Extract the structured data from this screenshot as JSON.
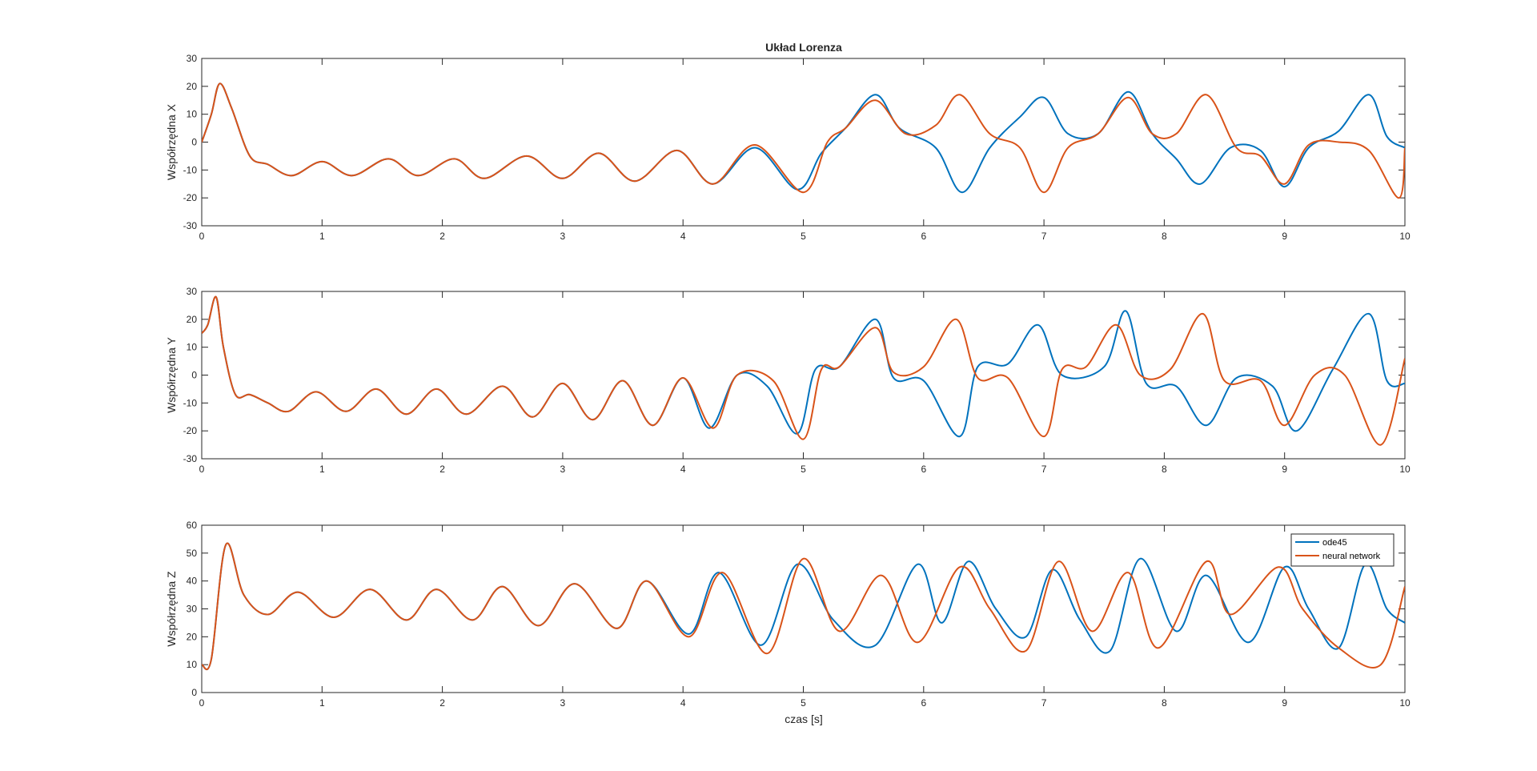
{
  "figure": {
    "title": "Układ Lorenza",
    "xlabel": "czas [s]"
  },
  "legend": {
    "placement": "top-right of bottom plot",
    "entries": [
      "ode45",
      "neural network"
    ]
  },
  "colors": {
    "ode45": "#0072BD",
    "neural_network": "#D95319",
    "axes": "#262626",
    "grid_ticks": "#262626"
  },
  "chart_data": [
    {
      "type": "line",
      "title": "Układ Lorenza",
      "ylabel": "Współrzędna X",
      "xlabel": "",
      "xlim": [
        0,
        10
      ],
      "ylim": [
        -30,
        30
      ],
      "xticks": [
        0,
        1,
        2,
        3,
        4,
        5,
        6,
        7,
        8,
        9,
        10
      ],
      "yticks": [
        30,
        20,
        10,
        0,
        -10,
        -20,
        -30
      ],
      "grid": false,
      "series": [
        {
          "name": "ode45",
          "color": "#0072BD",
          "x": [
            0,
            0.08,
            0.15,
            0.25,
            0.4,
            0.55,
            0.75,
            1,
            1.25,
            1.55,
            1.8,
            2.1,
            2.35,
            2.7,
            3.0,
            3.3,
            3.6,
            3.95,
            4.25,
            4.6,
            4.95,
            5.15,
            5.35,
            5.6,
            5.8,
            6.1,
            6.32,
            6.55,
            6.8,
            7.0,
            7.2,
            7.45,
            7.7,
            7.9,
            8.1,
            8.3,
            8.55,
            8.8,
            9.0,
            9.2,
            9.45,
            9.7,
            9.85,
            10
          ],
          "y": [
            0,
            10,
            21,
            12,
            -5,
            -8,
            -12,
            -7,
            -12,
            -6,
            -12,
            -6,
            -13,
            -5,
            -13,
            -4,
            -14,
            -3,
            -15,
            -2,
            -17,
            -4,
            5,
            17,
            5,
            -2,
            -18,
            -2,
            9,
            16,
            3,
            3,
            18,
            3,
            -6,
            -15,
            -2,
            -3,
            -16,
            -2,
            4,
            17,
            2,
            -2
          ]
        },
        {
          "name": "neural network",
          "color": "#D95319",
          "x": [
            0,
            0.08,
            0.15,
            0.25,
            0.4,
            0.55,
            0.75,
            1,
            1.25,
            1.55,
            1.8,
            2.1,
            2.35,
            2.7,
            3.0,
            3.3,
            3.6,
            3.95,
            4.25,
            4.6,
            5.0,
            5.2,
            5.35,
            5.6,
            5.85,
            6.1,
            6.3,
            6.55,
            6.8,
            7.0,
            7.2,
            7.45,
            7.7,
            7.9,
            8.1,
            8.35,
            8.6,
            8.8,
            9.0,
            9.2,
            9.45,
            9.7,
            9.95,
            10
          ],
          "y": [
            0,
            10,
            21,
            12,
            -5,
            -8,
            -12,
            -7,
            -12,
            -6,
            -12,
            -6,
            -13,
            -5,
            -13,
            -4,
            -14,
            -3,
            -15,
            -1,
            -18,
            0,
            5,
            15,
            3,
            6,
            17,
            3,
            -2,
            -18,
            -2,
            3,
            16,
            3,
            3,
            17,
            -2,
            -5,
            -15,
            -1,
            0,
            -3,
            -20,
            -2
          ]
        }
      ]
    },
    {
      "type": "line",
      "title": "",
      "ylabel": "Współrzędna Y",
      "xlabel": "",
      "xlim": [
        0,
        10
      ],
      "ylim": [
        -30,
        30
      ],
      "xticks": [
        0,
        1,
        2,
        3,
        4,
        5,
        6,
        7,
        8,
        9,
        10
      ],
      "yticks": [
        30,
        20,
        10,
        0,
        -10,
        -20,
        -30
      ],
      "grid": false,
      "series": [
        {
          "name": "ode45",
          "color": "#0072BD",
          "x": [
            0,
            0.05,
            0.12,
            0.18,
            0.28,
            0.4,
            0.55,
            0.72,
            0.95,
            1.2,
            1.45,
            1.7,
            1.95,
            2.2,
            2.5,
            2.75,
            3.0,
            3.25,
            3.5,
            3.75,
            4.0,
            4.22,
            4.45,
            4.7,
            4.95,
            5.1,
            5.3,
            5.6,
            5.75,
            6.0,
            6.3,
            6.45,
            6.7,
            6.95,
            7.15,
            7.5,
            7.68,
            7.85,
            8.1,
            8.35,
            8.6,
            8.9,
            9.1,
            9.4,
            9.7,
            9.85,
            10
          ],
          "y": [
            15,
            18,
            28,
            10,
            -7,
            -7,
            -10,
            -13,
            -6,
            -13,
            -5,
            -14,
            -5,
            -14,
            -4,
            -15,
            -3,
            -16,
            -2,
            -18,
            -1,
            -19,
            0,
            -4,
            -21,
            2,
            3,
            20,
            -1,
            -2,
            -22,
            3,
            4,
            18,
            0,
            3,
            23,
            -3,
            -4,
            -18,
            -1,
            -4,
            -20,
            2,
            22,
            -2,
            -3
          ]
        },
        {
          "name": "neural network",
          "color": "#D95319",
          "x": [
            0,
            0.05,
            0.12,
            0.18,
            0.28,
            0.4,
            0.55,
            0.72,
            0.95,
            1.2,
            1.45,
            1.7,
            1.95,
            2.2,
            2.5,
            2.75,
            3.0,
            3.25,
            3.5,
            3.75,
            4.0,
            4.25,
            4.45,
            4.75,
            5.0,
            5.15,
            5.3,
            5.6,
            5.75,
            6.0,
            6.27,
            6.45,
            6.7,
            7.0,
            7.15,
            7.35,
            7.6,
            7.8,
            8.05,
            8.32,
            8.5,
            8.8,
            9.0,
            9.25,
            9.5,
            9.8,
            10
          ],
          "y": [
            15,
            18,
            28,
            10,
            -7,
            -7,
            -10,
            -13,
            -6,
            -13,
            -5,
            -14,
            -5,
            -14,
            -4,
            -15,
            -3,
            -16,
            -2,
            -18,
            -1,
            -19,
            0,
            -2,
            -23,
            2,
            3,
            17,
            1,
            3,
            20,
            -1,
            -1,
            -22,
            2,
            3,
            18,
            0,
            2,
            22,
            -2,
            -2,
            -18,
            0,
            0,
            -25,
            6
          ]
        }
      ]
    },
    {
      "type": "line",
      "title": "",
      "ylabel": "Współrzędna Z",
      "xlabel": "czas [s]",
      "xlim": [
        0,
        10
      ],
      "ylim": [
        0,
        60
      ],
      "xticks": [
        0,
        1,
        2,
        3,
        4,
        5,
        6,
        7,
        8,
        9,
        10
      ],
      "yticks": [
        60,
        50,
        40,
        30,
        20,
        10,
        0
      ],
      "grid": false,
      "legend": "top-right",
      "series": [
        {
          "name": "ode45",
          "color": "#0072BD",
          "x": [
            0,
            0.08,
            0.2,
            0.35,
            0.55,
            0.8,
            1.1,
            1.4,
            1.7,
            1.95,
            2.25,
            2.5,
            2.8,
            3.1,
            3.45,
            3.7,
            4.05,
            4.3,
            4.65,
            4.95,
            5.25,
            5.6,
            5.95,
            6.15,
            6.37,
            6.6,
            6.85,
            7.07,
            7.3,
            7.55,
            7.8,
            8.1,
            8.35,
            8.7,
            9.0,
            9.2,
            9.45,
            9.67,
            9.85,
            10
          ],
          "y": [
            10,
            12,
            53,
            35,
            28,
            36,
            27,
            37,
            26,
            37,
            26,
            38,
            24,
            39,
            23,
            40,
            21,
            43,
            17,
            46,
            26,
            17,
            46,
            25,
            47,
            30,
            20,
            44,
            26,
            15,
            48,
            22,
            42,
            18,
            45,
            30,
            16,
            46,
            30,
            25
          ]
        },
        {
          "name": "neural network",
          "color": "#D95319",
          "x": [
            0,
            0.08,
            0.2,
            0.35,
            0.55,
            0.8,
            1.1,
            1.4,
            1.7,
            1.95,
            2.25,
            2.5,
            2.8,
            3.1,
            3.45,
            3.7,
            4.05,
            4.33,
            4.7,
            5.0,
            5.3,
            5.65,
            5.95,
            6.3,
            6.55,
            6.85,
            7.12,
            7.4,
            7.7,
            7.95,
            8.35,
            8.55,
            8.95,
            9.15,
            9.45,
            9.8,
            10
          ],
          "y": [
            10,
            12,
            53,
            35,
            28,
            36,
            27,
            37,
            26,
            37,
            26,
            38,
            24,
            39,
            23,
            40,
            20,
            43,
            14,
            48,
            22,
            42,
            18,
            45,
            30,
            15,
            47,
            22,
            43,
            16,
            47,
            28,
            45,
            30,
            16,
            10,
            38
          ]
        }
      ]
    }
  ]
}
